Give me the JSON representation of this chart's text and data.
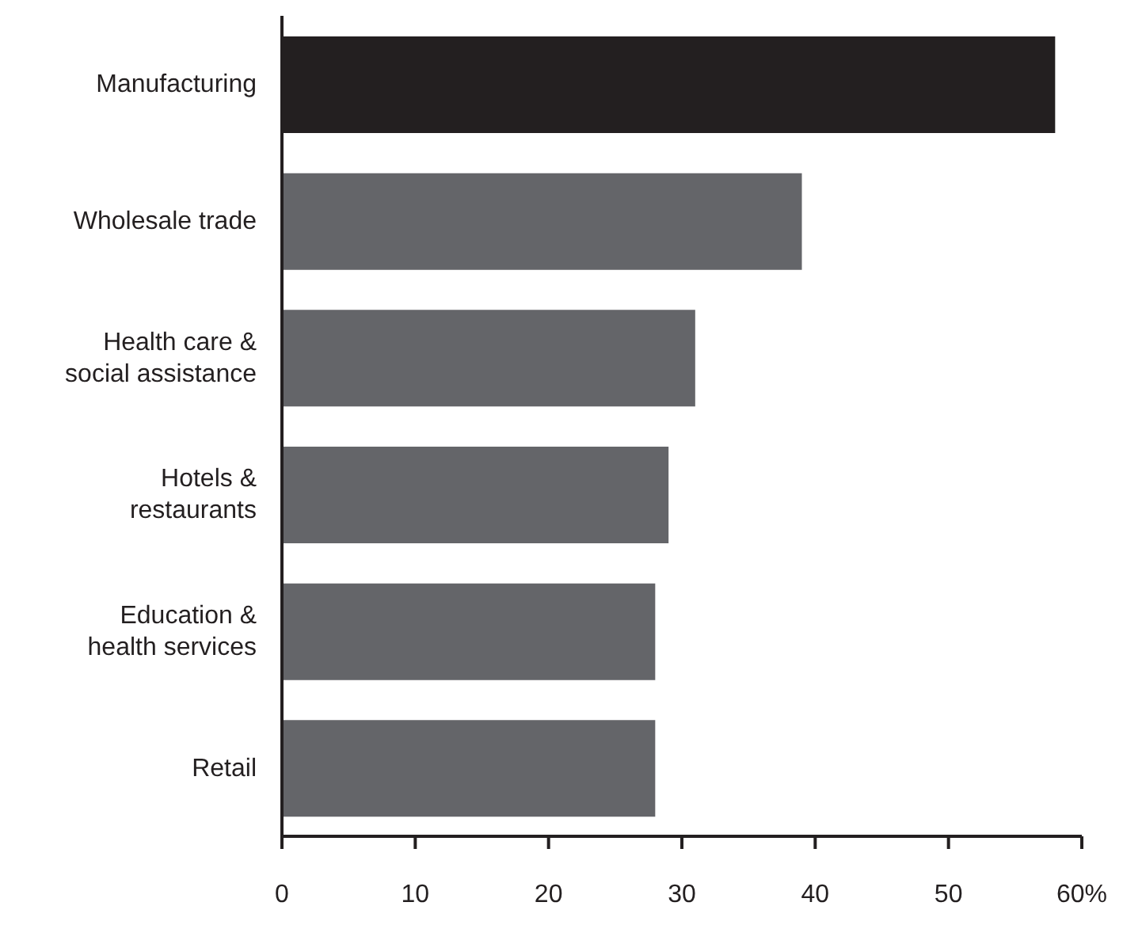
{
  "chart_data": {
    "type": "bar",
    "orientation": "horizontal",
    "categories": [
      "Manufacturing",
      "Wholesale trade",
      "Health care & social assistance",
      "Hotels & restaurants",
      "Education & health services",
      "Retail"
    ],
    "values": [
      58,
      39,
      31,
      29,
      28,
      28
    ],
    "colors": [
      "#231f20",
      "#646569",
      "#646569",
      "#646569",
      "#646569",
      "#646569"
    ],
    "xlim": [
      0,
      60
    ],
    "xticks": [
      0,
      10,
      20,
      30,
      40,
      50,
      {
        "value": 60,
        "label": "60%"
      }
    ],
    "grid": false,
    "legend": false
  }
}
